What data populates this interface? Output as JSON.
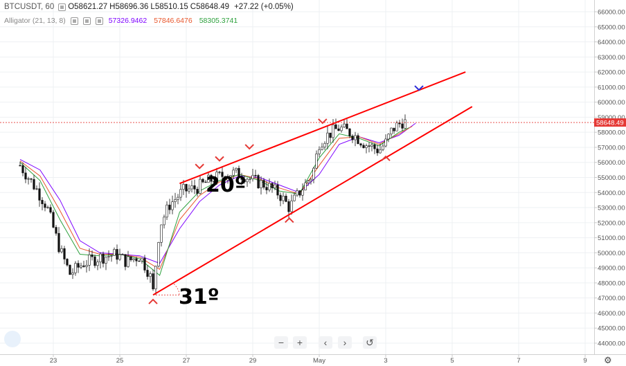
{
  "header": {
    "symbol": "BTCUSDT, 60",
    "open": "O58621.27",
    "high": "H58696.36",
    "low": "L58510.15",
    "close": "C58648.49",
    "change": "+27.22 (+0.05%)"
  },
  "indicator": {
    "name": "Alligator (21, 13, 8)",
    "jaw": "57326.9462",
    "teeth": "57846.6476",
    "lips": "58305.3741"
  },
  "price_tag": "58648.49",
  "annotations": {
    "angle_upper": "20º",
    "angle_lower": "31º"
  },
  "toolbar": {
    "zoom_out": "−",
    "zoom_in": "+",
    "prev": "‹",
    "next": "›",
    "reset": "↺"
  },
  "colors": {
    "jaw": "#7d00ff",
    "teeth": "#e8552a",
    "lips": "#2ca03c",
    "trendline": "#ff0000",
    "candle": "#000000"
  },
  "chart_data": {
    "type": "candlestick",
    "y_axis": {
      "min": 44000,
      "max": 66000,
      "step": 1000,
      "side": "right"
    },
    "y_ticks": [
      "66000.00",
      "65000.00",
      "64000.00",
      "63000.00",
      "62000.00",
      "61000.00",
      "60000.00",
      "59000.00",
      "58000.00",
      "57000.00",
      "56000.00",
      "55000.00",
      "54000.00",
      "53000.00",
      "52000.00",
      "51000.00",
      "50000.00",
      "49000.00",
      "48000.00",
      "47000.00",
      "46000.00",
      "45000.00",
      "44000.00"
    ],
    "x_ticks": [
      {
        "label": "23",
        "day": 23
      },
      {
        "label": "25",
        "day": 25
      },
      {
        "label": "27",
        "day": 27
      },
      {
        "label": "29",
        "day": 29
      },
      {
        "label": "May",
        "day": 31
      },
      {
        "label": "3",
        "day": 33
      },
      {
        "label": "5",
        "day": 35
      },
      {
        "label": "7",
        "day": 37
      },
      {
        "label": "9",
        "day": 39
      }
    ],
    "price_path": [
      [
        22.0,
        55800
      ],
      [
        22.5,
        54200
      ],
      [
        22.8,
        53100
      ],
      [
        23.2,
        50200
      ],
      [
        23.5,
        48600
      ],
      [
        23.9,
        49300
      ],
      [
        24.4,
        49700
      ],
      [
        24.9,
        49900
      ],
      [
        25.2,
        49400
      ],
      [
        25.6,
        49800
      ],
      [
        25.9,
        48600
      ],
      [
        26.0,
        47400
      ],
      [
        26.2,
        51800
      ],
      [
        26.5,
        53200
      ],
      [
        26.9,
        54100
      ],
      [
        27.3,
        54300
      ],
      [
        27.8,
        54900
      ],
      [
        28.3,
        55300
      ],
      [
        28.7,
        55200
      ],
      [
        29.0,
        54800
      ],
      [
        29.4,
        54500
      ],
      [
        29.8,
        53900
      ],
      [
        30.1,
        53000
      ],
      [
        30.4,
        54000
      ],
      [
        30.8,
        55200
      ],
      [
        31.0,
        57300
      ],
      [
        31.3,
        57900
      ],
      [
        31.6,
        58300
      ],
      [
        32.0,
        57900
      ],
      [
        32.4,
        57200
      ],
      [
        32.8,
        56800
      ],
      [
        33.0,
        57300
      ],
      [
        33.2,
        58200
      ],
      [
        33.5,
        58700
      ],
      [
        33.6,
        58649
      ]
    ],
    "alligator": {
      "jaw": [
        [
          22.0,
          56200
        ],
        [
          22.6,
          55500
        ],
        [
          23.2,
          53500
        ],
        [
          23.8,
          50800
        ],
        [
          24.4,
          50000
        ],
        [
          25.0,
          49900
        ],
        [
          25.6,
          49800
        ],
        [
          26.2,
          49300
        ],
        [
          26.8,
          51600
        ],
        [
          27.4,
          53400
        ],
        [
          28.0,
          54500
        ],
        [
          28.6,
          55100
        ],
        [
          29.2,
          55000
        ],
        [
          29.8,
          54500
        ],
        [
          30.4,
          54000
        ],
        [
          31.0,
          55200
        ],
        [
          31.6,
          57200
        ],
        [
          32.2,
          57700
        ],
        [
          32.8,
          57300
        ],
        [
          33.4,
          57800
        ],
        [
          33.9,
          58600
        ]
      ],
      "teeth": [
        [
          22.0,
          56100
        ],
        [
          22.6,
          55100
        ],
        [
          23.2,
          52800
        ],
        [
          23.8,
          50300
        ],
        [
          24.4,
          49900
        ],
        [
          25.0,
          49900
        ],
        [
          25.6,
          49700
        ],
        [
          26.2,
          48900
        ],
        [
          26.8,
          52200
        ],
        [
          27.4,
          53800
        ],
        [
          28.0,
          54700
        ],
        [
          28.6,
          55200
        ],
        [
          29.2,
          54900
        ],
        [
          29.8,
          54300
        ],
        [
          30.4,
          53900
        ],
        [
          31.0,
          55800
        ],
        [
          31.6,
          57600
        ],
        [
          32.2,
          57700
        ],
        [
          32.8,
          57200
        ],
        [
          33.4,
          57900
        ],
        [
          33.8,
          58400
        ]
      ],
      "lips": [
        [
          22.0,
          56000
        ],
        [
          22.6,
          54800
        ],
        [
          23.2,
          52200
        ],
        [
          23.8,
          49900
        ],
        [
          24.4,
          49800
        ],
        [
          25.0,
          49900
        ],
        [
          25.6,
          49600
        ],
        [
          26.2,
          48500
        ],
        [
          26.8,
          52700
        ],
        [
          27.4,
          54100
        ],
        [
          28.0,
          54800
        ],
        [
          28.6,
          55200
        ],
        [
          29.2,
          54800
        ],
        [
          29.8,
          54100
        ],
        [
          30.4,
          53900
        ],
        [
          31.0,
          56300
        ],
        [
          31.6,
          57900
        ],
        [
          32.2,
          57600
        ],
        [
          32.8,
          57100
        ],
        [
          33.4,
          58000
        ],
        [
          33.7,
          58300
        ]
      ]
    },
    "trendlines": [
      {
        "from": [
          26.0,
          47200
        ],
        "to": [
          35.6,
          59700
        ]
      },
      {
        "from": [
          26.8,
          54600
        ],
        "to": [
          35.4,
          62000
        ]
      }
    ],
    "markers": [
      {
        "type": "pivot-high",
        "at": [
          27.4,
          55700
        ]
      },
      {
        "type": "pivot-high",
        "at": [
          28.0,
          56200
        ]
      },
      {
        "type": "pivot-high",
        "at": [
          28.9,
          57000
        ]
      },
      {
        "type": "pivot-high",
        "at": [
          31.1,
          58700
        ]
      },
      {
        "type": "pivot-high-projected",
        "at": [
          34.0,
          60900
        ]
      },
      {
        "type": "pivot-low",
        "at": [
          26.0,
          46800
        ]
      },
      {
        "type": "pivot-low",
        "at": [
          30.1,
          52200
        ]
      },
      {
        "type": "pivot-low",
        "at": [
          33.0,
          56300
        ]
      }
    ],
    "last_price": 58648.49
  }
}
